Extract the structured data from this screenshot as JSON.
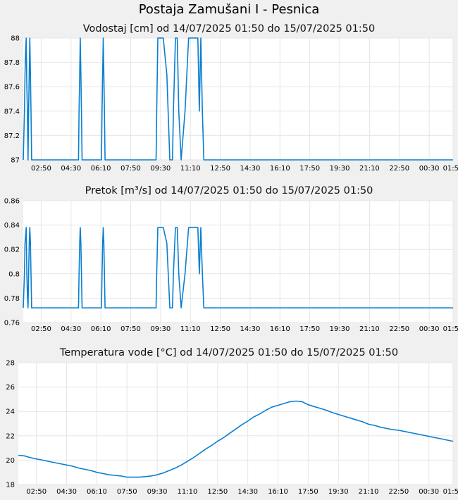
{
  "page": {
    "title": "Postaja Zamušani I - Pesnica"
  },
  "colors": {
    "line": "#0a7fd0",
    "grid": "#e6e6e6",
    "panel": "#ffffff",
    "page_bg": "#f0f0f0"
  },
  "chart_data": [
    {
      "type": "line",
      "title": "Vodostaj [cm] od 14/07/2025 01:50 do 15/07/2025 01:50",
      "x_start": "01:50",
      "x_end": "01:50",
      "x_tick_labels": [
        "02:50",
        "04:30",
        "06:10",
        "07:50",
        "09:30",
        "11:10",
        "12:50",
        "14:30",
        "16:10",
        "17:50",
        "19:30",
        "21:10",
        "22:50",
        "00:30",
        "01:50"
      ],
      "x_tick_minutes": [
        60,
        160,
        260,
        360,
        460,
        560,
        660,
        760,
        860,
        960,
        1060,
        1160,
        1260,
        1360,
        1440
      ],
      "y_tick_labels": [
        "87",
        "87.2",
        "87.4",
        "87.6",
        "87.8",
        "88"
      ],
      "ylim": [
        87,
        88
      ],
      "grid": true,
      "series": [
        {
          "x_minutes": [
            0,
            4,
            6,
            8,
            10,
            12,
            14,
            16,
            18,
            20,
            22,
            24,
            26,
            28,
            30,
            35,
            40,
            45,
            50,
            185,
            187,
            189,
            191,
            193,
            195,
            197,
            199,
            204,
            262,
            264,
            266,
            268,
            270,
            272,
            274,
            276,
            281,
            285,
            296,
            308,
            445,
            447,
            451,
            456,
            469,
            481,
            491,
            493,
            496,
            500,
            503,
            510,
            516,
            521,
            529,
            542,
            554,
            567,
            570,
            579,
            585,
            590,
            595,
            600,
            605,
            650,
            1440
          ],
          "values": [
            87.0,
            87.4,
            87.7,
            87.9,
            88.0,
            87.6,
            87.4,
            87.0,
            87.4,
            87.7,
            88.0,
            87.7,
            87.4,
            87.0,
            87.0,
            87.0,
            87.0,
            87.0,
            87.0,
            87.0,
            87.4,
            87.7,
            88.0,
            87.7,
            87.4,
            87.0,
            87.0,
            87.0,
            87.0,
            87.4,
            87.7,
            88.0,
            87.7,
            87.4,
            87.0,
            87.0,
            87.0,
            87.0,
            87.0,
            87.0,
            87.0,
            87.4,
            88.0,
            88.0,
            88.0,
            87.7,
            87.0,
            87.0,
            87.0,
            87.0,
            87.4,
            88.0,
            88.0,
            87.4,
            87.0,
            87.4,
            88.0,
            88.0,
            88.0,
            88.0,
            88.0,
            87.4,
            88.0,
            87.4,
            87.0,
            87.0,
            87.0
          ]
        }
      ]
    },
    {
      "type": "line",
      "title": "Pretok [m³/s] od 14/07/2025 01:50 do 15/07/2025 01:50",
      "x_start": "01:50",
      "x_end": "01:50",
      "x_tick_labels": [
        "02:50",
        "04:30",
        "06:10",
        "07:50",
        "09:30",
        "11:10",
        "12:50",
        "14:30",
        "16:10",
        "17:50",
        "19:30",
        "21:10",
        "22:50",
        "00:30",
        "01:50"
      ],
      "x_tick_minutes": [
        60,
        160,
        260,
        360,
        460,
        560,
        660,
        760,
        860,
        960,
        1060,
        1160,
        1260,
        1360,
        1440
      ],
      "y_tick_labels": [
        "0.76",
        "0.78",
        "0.8",
        "0.82",
        "0.84",
        "0.86"
      ],
      "ylim": [
        0.76,
        0.86
      ],
      "grid": true,
      "series": [
        {
          "x_minutes": [
            0,
            4,
            6,
            8,
            10,
            12,
            14,
            16,
            18,
            20,
            22,
            24,
            26,
            28,
            30,
            35,
            40,
            45,
            50,
            185,
            187,
            189,
            191,
            193,
            195,
            197,
            199,
            204,
            262,
            264,
            266,
            268,
            270,
            272,
            274,
            276,
            281,
            285,
            296,
            308,
            445,
            447,
            451,
            456,
            469,
            481,
            491,
            493,
            496,
            500,
            503,
            510,
            516,
            521,
            529,
            542,
            554,
            567,
            570,
            579,
            585,
            590,
            595,
            600,
            605,
            650,
            1440
          ],
          "values": [
            0.772,
            0.8,
            0.825,
            0.832,
            0.838,
            0.8,
            0.782,
            0.772,
            0.8,
            0.825,
            0.838,
            0.825,
            0.8,
            0.772,
            0.772,
            0.772,
            0.772,
            0.772,
            0.772,
            0.772,
            0.8,
            0.825,
            0.838,
            0.825,
            0.8,
            0.772,
            0.772,
            0.772,
            0.772,
            0.8,
            0.825,
            0.838,
            0.825,
            0.8,
            0.772,
            0.772,
            0.772,
            0.772,
            0.772,
            0.772,
            0.772,
            0.8,
            0.838,
            0.838,
            0.838,
            0.825,
            0.772,
            0.772,
            0.772,
            0.772,
            0.8,
            0.838,
            0.838,
            0.8,
            0.772,
            0.8,
            0.838,
            0.838,
            0.838,
            0.838,
            0.838,
            0.8,
            0.838,
            0.8,
            0.772,
            0.772,
            0.772
          ]
        }
      ]
    },
    {
      "type": "line",
      "title": "Temperatura vode [°C] od 14/07/2025 01:50 do 15/07/2025 01:50",
      "x_start": "01:50",
      "x_end": "01:50",
      "x_tick_labels": [
        "02:50",
        "04:30",
        "06:10",
        "07:50",
        "09:30",
        "11:10",
        "12:50",
        "14:30",
        "16:10",
        "17:50",
        "19:30",
        "21:10",
        "22:50",
        "00:30",
        "01:50"
      ],
      "x_tick_minutes": [
        60,
        160,
        260,
        360,
        460,
        560,
        660,
        760,
        860,
        960,
        1060,
        1160,
        1260,
        1360,
        1440
      ],
      "y_tick_labels": [
        "18",
        "20",
        "22",
        "24",
        "26",
        "28"
      ],
      "ylim": [
        18,
        28
      ],
      "grid": true,
      "series": [
        {
          "x_minutes": [
            0,
            20,
            40,
            60,
            80,
            100,
            120,
            140,
            160,
            180,
            200,
            220,
            240,
            260,
            280,
            300,
            320,
            340,
            360,
            380,
            400,
            420,
            440,
            460,
            480,
            500,
            520,
            540,
            560,
            580,
            600,
            620,
            640,
            660,
            680,
            700,
            720,
            740,
            760,
            780,
            800,
            820,
            840,
            860,
            880,
            900,
            920,
            940,
            960,
            980,
            1000,
            1020,
            1040,
            1060,
            1080,
            1100,
            1120,
            1140,
            1160,
            1180,
            1200,
            1220,
            1240,
            1260,
            1280,
            1300,
            1320,
            1340,
            1360,
            1380,
            1400,
            1420,
            1440
          ],
          "values": [
            20.4,
            20.35,
            20.2,
            20.1,
            20.0,
            19.9,
            19.8,
            19.7,
            19.6,
            19.5,
            19.35,
            19.25,
            19.15,
            19.0,
            18.9,
            18.8,
            18.75,
            18.7,
            18.6,
            18.6,
            18.6,
            18.65,
            18.7,
            18.8,
            18.95,
            19.15,
            19.35,
            19.6,
            19.9,
            20.2,
            20.55,
            20.9,
            21.2,
            21.55,
            21.85,
            22.2,
            22.55,
            22.9,
            23.2,
            23.55,
            23.8,
            24.1,
            24.35,
            24.5,
            24.65,
            24.8,
            24.85,
            24.8,
            24.55,
            24.4,
            24.25,
            24.1,
            23.9,
            23.75,
            23.6,
            23.45,
            23.3,
            23.15,
            22.95,
            22.85,
            22.7,
            22.6,
            22.5,
            22.45,
            22.35,
            22.25,
            22.15,
            22.05,
            21.95,
            21.85,
            21.75,
            21.65,
            21.55
          ]
        }
      ]
    }
  ]
}
